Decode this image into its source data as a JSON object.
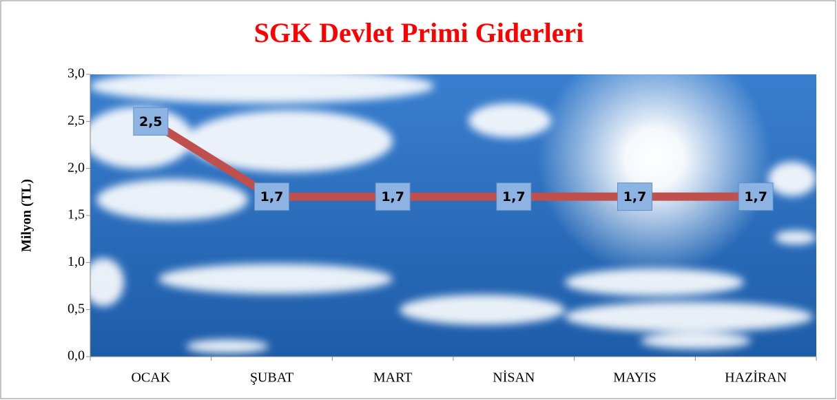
{
  "chart_data": {
    "type": "line",
    "title": "SGK Devlet Primi Giderleri",
    "ylabel": "Milyon (TL)",
    "categories": [
      "OCAK",
      "ŞUBAT",
      "MART",
      "NİSAN",
      "MAYIS",
      "HAZİRAN"
    ],
    "values": [
      2.5,
      1.7,
      1.7,
      1.7,
      1.7,
      1.7
    ],
    "value_labels": [
      "2,5",
      "1,7",
      "1,7",
      "1,7",
      "1,7",
      "1,7"
    ],
    "color": "#c0504d",
    "ylim": [
      0,
      3
    ],
    "yticks": [
      {
        "value": 0,
        "label": "0,0"
      },
      {
        "value": 0.5,
        "label": "0,5"
      },
      {
        "value": 1,
        "label": "1,0"
      },
      {
        "value": 1.5,
        "label": "1,5"
      },
      {
        "value": 2,
        "label": "2,0"
      },
      {
        "value": 2.5,
        "label": "2,5"
      },
      {
        "value": 3,
        "label": "3,0"
      }
    ]
  }
}
